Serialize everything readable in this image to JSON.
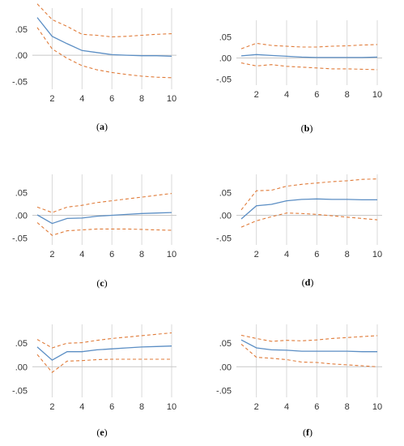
{
  "colors": {
    "response": "#5b8ec4",
    "band": "#e07b39",
    "grid": "#d9d9d9",
    "zero": "#c8c8c8"
  },
  "chart_data": [
    {
      "type": "line",
      "panel": "a",
      "caption": "(a)",
      "x": [
        1,
        2,
        3,
        4,
        5,
        6,
        7,
        8,
        9,
        10
      ],
      "xticks": [
        "2",
        "4",
        "6",
        "8",
        "10"
      ],
      "yticks": [
        ".05",
        ".00",
        "-.05"
      ],
      "ylim": [
        -0.065,
        0.09
      ],
      "legend": "none",
      "series": [
        {
          "role": "response",
          "style": "solid",
          "values": [
            0.072,
            0.036,
            0.022,
            0.009,
            0.005,
            0.001,
            0.0,
            -0.001,
            -0.001,
            -0.002
          ]
        },
        {
          "role": "upper",
          "style": "dashed",
          "values": [
            0.098,
            0.068,
            0.055,
            0.04,
            0.038,
            0.035,
            0.036,
            0.038,
            0.04,
            0.041
          ]
        },
        {
          "role": "lower",
          "style": "dashed",
          "values": [
            0.053,
            0.012,
            -0.006,
            -0.02,
            -0.028,
            -0.033,
            -0.037,
            -0.04,
            -0.042,
            -0.043
          ]
        }
      ]
    },
    {
      "type": "line",
      "panel": "b",
      "caption": "(b)",
      "x": [
        1,
        2,
        3,
        4,
        5,
        6,
        7,
        8,
        9,
        10
      ],
      "xticks": [
        "2",
        "4",
        "6",
        "8",
        "10"
      ],
      "yticks": [
        ".05",
        ".00",
        "-.05"
      ],
      "ylim": [
        -0.065,
        0.09
      ],
      "legend": "none",
      "series": [
        {
          "role": "response",
          "style": "solid",
          "values": [
            0.005,
            0.008,
            0.006,
            0.004,
            0.002,
            0.001,
            0.001,
            0.001,
            0.001,
            0.002
          ]
        },
        {
          "role": "upper",
          "style": "dashed",
          "values": [
            0.022,
            0.035,
            0.03,
            0.028,
            0.026,
            0.026,
            0.028,
            0.029,
            0.031,
            0.032
          ]
        },
        {
          "role": "lower",
          "style": "dashed",
          "values": [
            -0.012,
            -0.019,
            -0.016,
            -0.02,
            -0.022,
            -0.024,
            -0.026,
            -0.026,
            -0.027,
            -0.028
          ]
        }
      ]
    },
    {
      "type": "line",
      "panel": "c",
      "caption": "(c)",
      "x": [
        1,
        2,
        3,
        4,
        5,
        6,
        7,
        8,
        9,
        10
      ],
      "xticks": [
        "2",
        "4",
        "6",
        "8",
        "10"
      ],
      "yticks": [
        ".05",
        ".00",
        "-.05"
      ],
      "ylim": [
        -0.065,
        0.09
      ],
      "legend": "none",
      "series": [
        {
          "role": "response",
          "style": "solid",
          "values": [
            0.001,
            -0.018,
            -0.007,
            -0.006,
            -0.002,
            0.0,
            0.002,
            0.004,
            0.005,
            0.006
          ]
        },
        {
          "role": "upper",
          "style": "dashed",
          "values": [
            0.018,
            0.006,
            0.018,
            0.022,
            0.028,
            0.032,
            0.036,
            0.04,
            0.044,
            0.048
          ]
        },
        {
          "role": "lower",
          "style": "dashed",
          "values": [
            -0.016,
            -0.044,
            -0.034,
            -0.032,
            -0.03,
            -0.03,
            -0.03,
            -0.031,
            -0.032,
            -0.033
          ]
        }
      ]
    },
    {
      "type": "line",
      "panel": "d",
      "caption": "(d)",
      "x": [
        1,
        2,
        3,
        4,
        5,
        6,
        7,
        8,
        9,
        10
      ],
      "xticks": [
        "2",
        "4",
        "6",
        "8",
        "10"
      ],
      "yticks": [
        ".05",
        ".00",
        "-.05"
      ],
      "ylim": [
        -0.065,
        0.09
      ],
      "legend": "none",
      "series": [
        {
          "role": "response",
          "style": "solid",
          "values": [
            -0.008,
            0.021,
            0.024,
            0.032,
            0.035,
            0.036,
            0.035,
            0.035,
            0.034,
            0.034
          ]
        },
        {
          "role": "upper",
          "style": "dashed",
          "values": [
            0.012,
            0.054,
            0.055,
            0.064,
            0.068,
            0.071,
            0.074,
            0.076,
            0.079,
            0.08
          ]
        },
        {
          "role": "lower",
          "style": "dashed",
          "values": [
            -0.026,
            -0.012,
            -0.003,
            0.005,
            0.004,
            0.002,
            -0.001,
            -0.004,
            -0.007,
            -0.01
          ]
        }
      ]
    },
    {
      "type": "line",
      "panel": "e",
      "caption": "(e)",
      "x": [
        1,
        2,
        3,
        4,
        5,
        6,
        7,
        8,
        9,
        10
      ],
      "xticks": [
        "2",
        "4",
        "6",
        "8",
        "10"
      ],
      "yticks": [
        ".05",
        ".00",
        "-.05"
      ],
      "ylim": [
        -0.065,
        0.09
      ],
      "legend": "none",
      "series": [
        {
          "role": "response",
          "style": "solid",
          "values": [
            0.042,
            0.014,
            0.032,
            0.032,
            0.036,
            0.038,
            0.04,
            0.042,
            0.043,
            0.044
          ]
        },
        {
          "role": "upper",
          "style": "dashed",
          "values": [
            0.058,
            0.04,
            0.05,
            0.051,
            0.056,
            0.06,
            0.063,
            0.066,
            0.069,
            0.072
          ]
        },
        {
          "role": "lower",
          "style": "dashed",
          "values": [
            0.026,
            -0.012,
            0.012,
            0.013,
            0.015,
            0.016,
            0.016,
            0.016,
            0.016,
            0.016
          ]
        }
      ]
    },
    {
      "type": "line",
      "panel": "f",
      "caption": "(f)",
      "x": [
        1,
        2,
        3,
        4,
        5,
        6,
        7,
        8,
        9,
        10
      ],
      "xticks": [
        "2",
        "4",
        "6",
        "8",
        "10"
      ],
      "yticks": [
        ".05",
        ".00",
        "-.05"
      ],
      "ylim": [
        -0.065,
        0.09
      ],
      "legend": "none",
      "series": [
        {
          "role": "response",
          "style": "solid",
          "values": [
            0.057,
            0.04,
            0.036,
            0.035,
            0.033,
            0.033,
            0.033,
            0.033,
            0.032,
            0.032
          ]
        },
        {
          "role": "upper",
          "style": "dashed",
          "values": [
            0.067,
            0.06,
            0.054,
            0.056,
            0.055,
            0.057,
            0.06,
            0.062,
            0.064,
            0.066
          ]
        },
        {
          "role": "lower",
          "style": "dashed",
          "values": [
            0.048,
            0.02,
            0.018,
            0.015,
            0.01,
            0.009,
            0.006,
            0.004,
            0.002,
            0.0
          ]
        }
      ]
    }
  ]
}
